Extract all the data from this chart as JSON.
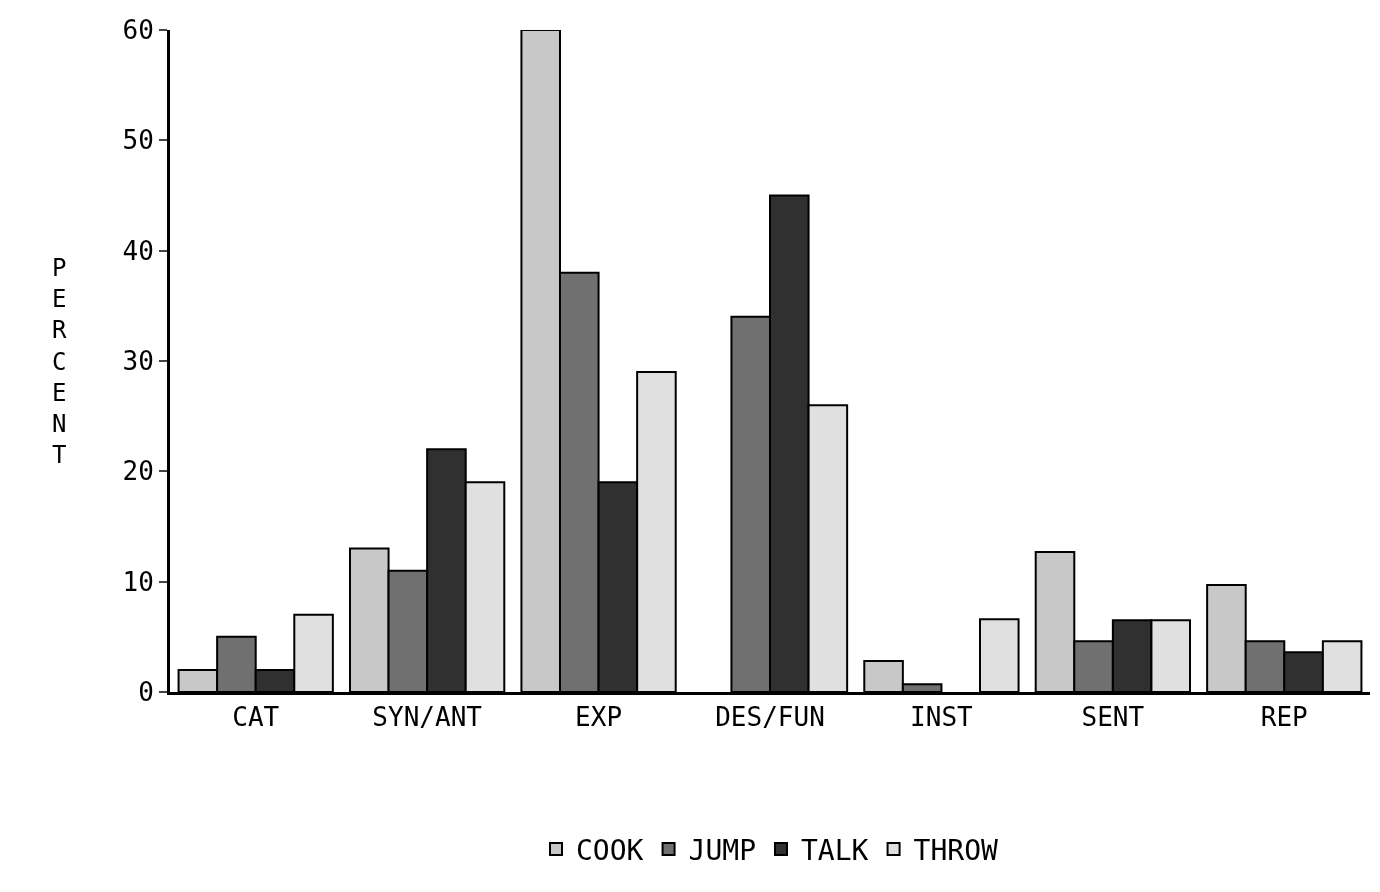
{
  "chart_data": {
    "type": "bar",
    "ylabel": "PERCENT",
    "categories": [
      "CAT",
      "SYN/ANT",
      "EXP",
      "DES/FUN",
      "INST",
      "SENT",
      "REP"
    ],
    "series": [
      {
        "name": "COOK",
        "color": "#c8c8c8",
        "values": [
          2,
          13,
          60,
          null,
          2.8,
          12.7,
          9.7
        ]
      },
      {
        "name": "JUMP",
        "color": "#707070",
        "values": [
          5,
          11,
          38,
          34,
          0.7,
          4.6,
          4.6
        ]
      },
      {
        "name": "TALK",
        "color": "#303030",
        "values": [
          2,
          22,
          19,
          45,
          null,
          6.5,
          3.6
        ]
      },
      {
        "name": "THROW",
        "color": "#e0e0e0",
        "values": [
          7,
          19,
          29,
          26,
          6.6,
          6.5,
          4.6
        ]
      }
    ],
    "ylim": [
      0,
      60
    ],
    "yticks": [
      0,
      10,
      20,
      30,
      40,
      50,
      60
    ],
    "grid": false,
    "legend": "bottom"
  }
}
